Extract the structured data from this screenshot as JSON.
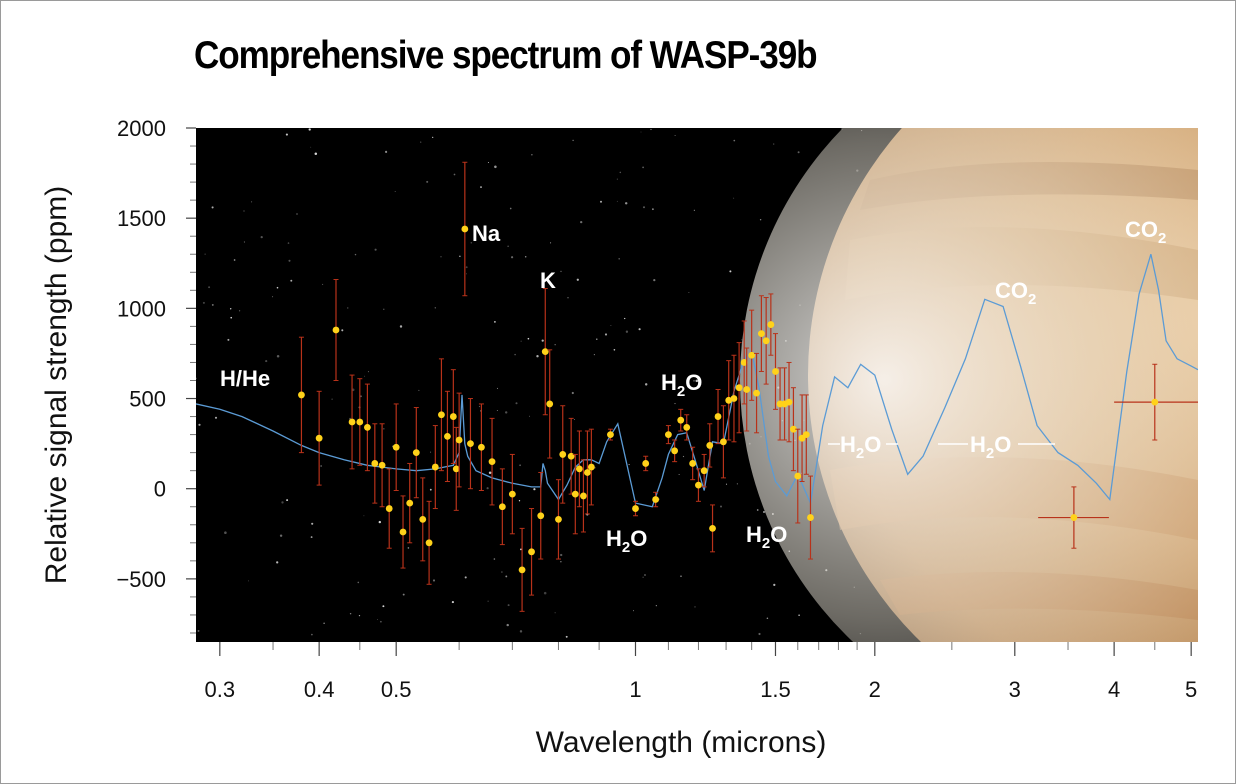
{
  "chart_data": {
    "type": "scatter",
    "title": "Comprehensive spectrum of WASP-39b",
    "xlabel": "Wavelength (microns)",
    "ylabel": "Relative signal strength (ppm)",
    "x_scale": "log",
    "xlim": [
      0.28,
      5.1
    ],
    "ylim": [
      -850,
      2000
    ],
    "x_ticks": [
      0.3,
      0.4,
      0.5,
      1,
      1.5,
      2,
      3,
      4,
      5
    ],
    "x_tick_labels": [
      "0.3",
      "0.4",
      "0.5",
      "1",
      "1.5",
      "2",
      "3",
      "4",
      "5"
    ],
    "y_ticks": [
      2000,
      1500,
      1000,
      500,
      0,
      -500
    ],
    "y_tick_labels": [
      "2000",
      "1500",
      "1000",
      "500",
      "0",
      "−500"
    ],
    "series": [
      {
        "type": "points_with_error_bars",
        "color": "#ffd21a",
        "error_color": "#b8321a",
        "points": [
          {
            "x": 0.38,
            "y": 520,
            "err": 320
          },
          {
            "x": 0.4,
            "y": 280,
            "err": 260
          },
          {
            "x": 0.42,
            "y": 880,
            "err": 280
          },
          {
            "x": 0.44,
            "y": 370,
            "err": 260
          },
          {
            "x": 0.45,
            "y": 370,
            "err": 240
          },
          {
            "x": 0.46,
            "y": 340,
            "err": 240
          },
          {
            "x": 0.47,
            "y": 140,
            "err": 220
          },
          {
            "x": 0.48,
            "y": 130,
            "err": 230
          },
          {
            "x": 0.49,
            "y": -110,
            "err": 220
          },
          {
            "x": 0.5,
            "y": 230,
            "err": 240
          },
          {
            "x": 0.51,
            "y": -240,
            "err": 200
          },
          {
            "x": 0.52,
            "y": -80,
            "err": 220
          },
          {
            "x": 0.53,
            "y": 200,
            "err": 250
          },
          {
            "x": 0.54,
            "y": -170,
            "err": 230
          },
          {
            "x": 0.55,
            "y": -300,
            "err": 230
          },
          {
            "x": 0.56,
            "y": 120,
            "err": 230
          },
          {
            "x": 0.57,
            "y": 410,
            "err": 310
          },
          {
            "x": 0.58,
            "y": 290,
            "err": 250
          },
          {
            "x": 0.59,
            "y": 400,
            "err": 260
          },
          {
            "x": 0.595,
            "y": 110,
            "err": 230
          },
          {
            "x": 0.6,
            "y": 270,
            "err": 260
          },
          {
            "x": 0.61,
            "y": 1440,
            "err": 370
          },
          {
            "x": 0.62,
            "y": 250,
            "err": 250
          },
          {
            "x": 0.64,
            "y": 230,
            "err": 240
          },
          {
            "x": 0.66,
            "y": 150,
            "err": 240
          },
          {
            "x": 0.68,
            "y": -100,
            "err": 210
          },
          {
            "x": 0.7,
            "y": -30,
            "err": 220
          },
          {
            "x": 0.72,
            "y": -450,
            "err": 230
          },
          {
            "x": 0.74,
            "y": -350,
            "err": 240
          },
          {
            "x": 0.76,
            "y": -150,
            "err": 240
          },
          {
            "x": 0.77,
            "y": 760,
            "err": 350
          },
          {
            "x": 0.78,
            "y": 470,
            "err": 300
          },
          {
            "x": 0.8,
            "y": -170,
            "err": 220
          },
          {
            "x": 0.81,
            "y": 190,
            "err": 270
          },
          {
            "x": 0.83,
            "y": 180,
            "err": 210
          },
          {
            "x": 0.84,
            "y": -30,
            "err": 220
          },
          {
            "x": 0.85,
            "y": 110,
            "err": 210
          },
          {
            "x": 0.86,
            "y": -40,
            "err": 200
          },
          {
            "x": 0.87,
            "y": 90,
            "err": 230
          },
          {
            "x": 0.88,
            "y": 120,
            "err": 210
          },
          {
            "x": 0.93,
            "y": 300,
            "err": 30
          },
          {
            "x": 1.0,
            "y": -110,
            "err": 40
          },
          {
            "x": 1.03,
            "y": 140,
            "err": 40
          },
          {
            "x": 1.06,
            "y": -60,
            "err": 40
          },
          {
            "x": 1.1,
            "y": 300,
            "err": 50
          },
          {
            "x": 1.12,
            "y": 210,
            "err": 60
          },
          {
            "x": 1.14,
            "y": 380,
            "err": 60
          },
          {
            "x": 1.16,
            "y": 340,
            "err": 70
          },
          {
            "x": 1.18,
            "y": 140,
            "err": 90
          },
          {
            "x": 1.2,
            "y": 20,
            "err": 90
          },
          {
            "x": 1.22,
            "y": 100,
            "err": 90
          },
          {
            "x": 1.24,
            "y": 240,
            "err": 120
          },
          {
            "x": 1.25,
            "y": -220,
            "err": 130
          },
          {
            "x": 1.27,
            "y": 400,
            "err": 150
          },
          {
            "x": 1.29,
            "y": 260,
            "err": 200
          },
          {
            "x": 1.31,
            "y": 490,
            "err": 220
          },
          {
            "x": 1.33,
            "y": 500,
            "err": 240
          },
          {
            "x": 1.35,
            "y": 560,
            "err": 250
          },
          {
            "x": 1.37,
            "y": 700,
            "err": 230
          },
          {
            "x": 1.38,
            "y": 550,
            "err": 230
          },
          {
            "x": 1.4,
            "y": 740,
            "err": 250
          },
          {
            "x": 1.42,
            "y": 530,
            "err": 220
          },
          {
            "x": 1.44,
            "y": 860,
            "err": 210
          },
          {
            "x": 1.46,
            "y": 820,
            "err": 240
          },
          {
            "x": 1.48,
            "y": 910,
            "err": 170
          },
          {
            "x": 1.5,
            "y": 650,
            "err": 210
          },
          {
            "x": 1.52,
            "y": 470,
            "err": 200
          },
          {
            "x": 1.54,
            "y": 470,
            "err": 200
          },
          {
            "x": 1.56,
            "y": 480,
            "err": 220
          },
          {
            "x": 1.58,
            "y": 330,
            "err": 230
          },
          {
            "x": 1.6,
            "y": 70,
            "err": 260
          },
          {
            "x": 1.62,
            "y": 280,
            "err": 240
          },
          {
            "x": 1.64,
            "y": 300,
            "err": 220
          },
          {
            "x": 1.66,
            "y": -160,
            "err": 230
          },
          {
            "x": 3.56,
            "y": -160,
            "err": 170,
            "xerr_lo": 0.35,
            "xerr_hi": 0.38
          },
          {
            "x": 4.5,
            "y": 480,
            "err": 210,
            "xerr_lo": 0.5,
            "xerr_hi": 0.6
          }
        ]
      },
      {
        "type": "model_line",
        "color": "#5b9bd5",
        "x": [
          0.28,
          0.3,
          0.32,
          0.35,
          0.38,
          0.4,
          0.43,
          0.46,
          0.5,
          0.53,
          0.56,
          0.59,
          0.6,
          0.605,
          0.61,
          0.615,
          0.63,
          0.66,
          0.7,
          0.74,
          0.76,
          0.765,
          0.77,
          0.775,
          0.8,
          0.82,
          0.84,
          0.86,
          0.88,
          0.9,
          0.92,
          0.95,
          1.0,
          1.05,
          1.08,
          1.1,
          1.13,
          1.16,
          1.19,
          1.22,
          1.25,
          1.29,
          1.33,
          1.37,
          1.4,
          1.43,
          1.47,
          1.5,
          1.55,
          1.6,
          1.66,
          1.72,
          1.78,
          1.85,
          1.92,
          2.0,
          2.1,
          2.2,
          2.3,
          2.45,
          2.6,
          2.75,
          2.9,
          3.05,
          3.2,
          3.4,
          3.6,
          3.8,
          3.95,
          4.05,
          4.15,
          4.3,
          4.45,
          4.55,
          4.65,
          4.8,
          5.0,
          5.1
        ],
        "y": [
          470,
          440,
          400,
          320,
          240,
          200,
          160,
          130,
          110,
          100,
          110,
          130,
          200,
          520,
          250,
          180,
          100,
          60,
          30,
          10,
          10,
          140,
          100,
          30,
          -60,
          20,
          120,
          160,
          160,
          140,
          260,
          360,
          -80,
          -100,
          60,
          190,
          300,
          310,
          150,
          -10,
          260,
          250,
          540,
          720,
          760,
          560,
          180,
          40,
          -40,
          80,
          -80,
          350,
          620,
          560,
          690,
          630,
          330,
          80,
          180,
          450,
          720,
          1050,
          1010,
          680,
          350,
          200,
          130,
          30,
          -60,
          300,
          650,
          1080,
          1300,
          1100,
          820,
          720,
          680,
          660
        ]
      }
    ],
    "annotations": [
      {
        "text": "H/He",
        "sub": ""
      },
      {
        "text": "Na",
        "sub": ""
      },
      {
        "text": "K",
        "sub": ""
      },
      {
        "text": "H",
        "sub": "2",
        "tail": "O"
      },
      {
        "text": "H",
        "sub": "2",
        "tail": "O"
      },
      {
        "text": "H",
        "sub": "2",
        "tail": "O"
      },
      {
        "text": "H",
        "sub": "2",
        "tail": "O"
      },
      {
        "text": "H",
        "sub": "2",
        "tail": "O"
      },
      {
        "text": "CO",
        "sub": "2",
        "tail": ""
      },
      {
        "text": "CO",
        "sub": "2",
        "tail": ""
      }
    ],
    "background": {
      "space": "#000000",
      "planet": "banded gas giant"
    }
  }
}
